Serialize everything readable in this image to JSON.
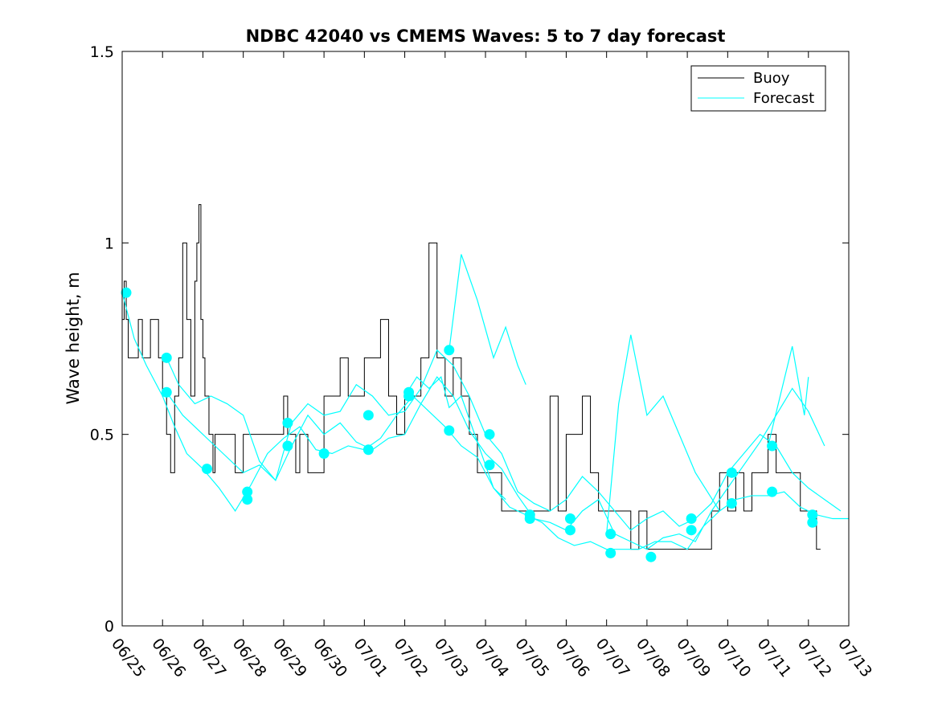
{
  "chart_data": {
    "type": "line",
    "title": "NDBC 42040 vs CMEMS Waves: 5 to 7 day forecast",
    "xlabel": "",
    "ylabel": "Wave height, m",
    "xlim": [
      "06/25",
      "07/13"
    ],
    "ylim": [
      0,
      1.5
    ],
    "yticks": [
      0,
      0.5,
      1,
      1.5
    ],
    "ytick_labels": [
      "0",
      "0.5",
      "1",
      "1.5"
    ],
    "xtick_labels": [
      "06/25",
      "06/26",
      "06/27",
      "06/28",
      "06/29",
      "06/30",
      "07/01",
      "07/02",
      "07/03",
      "07/04",
      "07/05",
      "07/06",
      "07/07",
      "07/08",
      "07/09",
      "07/10",
      "07/11",
      "07/12",
      "07/13"
    ],
    "grid": false,
    "legend": {
      "position": "top-right",
      "entries": [
        "Buoy",
        "Forecast"
      ]
    },
    "colors": {
      "buoy": "#000000",
      "forecast": "#00ffff",
      "markers": "#00ffff"
    },
    "series": [
      {
        "name": "Buoy",
        "x_days": [
          0,
          0.05,
          0.1,
          0.15,
          0.2,
          0.3,
          0.4,
          0.5,
          0.6,
          0.7,
          0.8,
          0.9,
          1.0,
          1.1,
          1.2,
          1.3,
          1.4,
          1.5,
          1.6,
          1.7,
          1.8,
          1.85,
          1.9,
          1.95,
          2.0,
          2.05,
          2.1,
          2.15,
          2.2,
          2.25,
          2.3,
          2.4,
          2.5,
          2.6,
          2.7,
          2.8,
          2.9,
          3.0,
          3.2,
          3.4,
          3.6,
          3.8,
          4.0,
          4.1,
          4.2,
          4.3,
          4.4,
          4.5,
          4.6,
          4.8,
          5.0,
          5.2,
          5.4,
          5.6,
          5.8,
          6.0,
          6.2,
          6.4,
          6.6,
          6.8,
          7.0,
          7.2,
          7.4,
          7.6,
          7.8,
          8.0,
          8.2,
          8.4,
          8.6,
          8.8,
          9.0,
          9.2,
          9.4,
          9.6,
          9.8,
          10.0,
          10.2,
          10.4,
          10.6,
          10.8,
          11.0,
          11.2,
          11.4,
          11.6,
          11.8,
          12.0,
          12.2,
          12.4,
          12.6,
          12.8,
          13.0,
          13.2,
          13.4,
          13.6,
          13.8,
          14.0,
          14.2,
          14.4,
          14.6,
          14.8,
          15.0,
          15.2,
          15.4,
          15.6,
          15.8,
          16.0,
          16.2,
          16.4,
          16.6,
          16.8,
          17.0,
          17.2,
          17.3
        ],
        "values": [
          0.8,
          0.9,
          0.8,
          0.7,
          0.7,
          0.7,
          0.8,
          0.7,
          0.7,
          0.8,
          0.8,
          0.7,
          0.6,
          0.5,
          0.4,
          0.6,
          0.7,
          1.0,
          0.8,
          0.6,
          0.9,
          1.0,
          1.1,
          0.8,
          0.7,
          0.6,
          0.6,
          0.5,
          0.5,
          0.4,
          0.5,
          0.5,
          0.5,
          0.5,
          0.5,
          0.4,
          0.4,
          0.5,
          0.5,
          0.5,
          0.5,
          0.5,
          0.6,
          0.5,
          0.5,
          0.4,
          0.5,
          0.5,
          0.4,
          0.4,
          0.6,
          0.6,
          0.7,
          0.6,
          0.6,
          0.7,
          0.7,
          0.8,
          0.6,
          0.5,
          0.6,
          0.6,
          0.7,
          1.0,
          0.7,
          0.6,
          0.7,
          0.6,
          0.5,
          0.4,
          0.4,
          0.4,
          0.3,
          0.3,
          0.3,
          0.3,
          0.3,
          0.3,
          0.6,
          0.3,
          0.5,
          0.5,
          0.6,
          0.4,
          0.3,
          0.3,
          0.3,
          0.3,
          0.2,
          0.3,
          0.2,
          0.2,
          0.2,
          0.2,
          0.2,
          0.2,
          0.2,
          0.2,
          0.3,
          0.4,
          0.3,
          0.4,
          0.3,
          0.4,
          0.4,
          0.5,
          0.4,
          0.4,
          0.4,
          0.3,
          0.3,
          0.2,
          0.2
        ]
      },
      {
        "name": "Forecast",
        "segments": [
          {
            "x_days": [
              0,
              0.3,
              0.6,
              1.0,
              1.3,
              1.6,
              2.0,
              2.4,
              2.8,
              3.2,
              3.6,
              4.0,
              4.4,
              4.8,
              5.2,
              5.6,
              6.0,
              6.4,
              6.8,
              7.2,
              7.6,
              8.0,
              8.4,
              8.8,
              9.2,
              9.6,
              10.0,
              10.4,
              10.8,
              11.2,
              11.6,
              12.0,
              12.4,
              12.8,
              13.2,
              13.6,
              14.0,
              14.4,
              14.8,
              15.2,
              15.6,
              16.0,
              16.4,
              16.8,
              17.2,
              17.6,
              18.0
            ],
            "values": [
              0.87,
              0.75,
              0.68,
              0.6,
              0.52,
              0.45,
              0.41,
              0.36,
              0.3,
              0.37,
              0.45,
              0.49,
              0.52,
              0.46,
              0.45,
              0.47,
              0.46,
              0.49,
              0.55,
              0.6,
              0.56,
              0.52,
              0.47,
              0.44,
              0.36,
              0.31,
              0.29,
              0.27,
              0.23,
              0.21,
              0.22,
              0.2,
              0.2,
              0.2,
              0.22,
              0.22,
              0.2,
              0.26,
              0.3,
              0.33,
              0.34,
              0.34,
              0.35,
              0.31,
              0.29,
              0.28,
              0.28
            ]
          },
          {
            "x_days": [
              1.1,
              1.4,
              1.8,
              2.2,
              2.6,
              3.0,
              3.4,
              3.8,
              4.2,
              4.6,
              5.0,
              5.4,
              5.8,
              6.2,
              6.6,
              7.0,
              7.4,
              7.8,
              8.2,
              8.6,
              9.0,
              9.4,
              9.8,
              10.2,
              10.6,
              11.0,
              11.4,
              11.8,
              12.2,
              12.6,
              13.0,
              13.4,
              13.8,
              14.2,
              14.6,
              15.0,
              15.4,
              15.8,
              16.2,
              16.6,
              17.0,
              17.4,
              17.8
            ],
            "values": [
              0.7,
              0.63,
              0.58,
              0.6,
              0.58,
              0.55,
              0.43,
              0.38,
              0.53,
              0.58,
              0.55,
              0.56,
              0.63,
              0.6,
              0.55,
              0.56,
              0.62,
              0.72,
              0.68,
              0.6,
              0.5,
              0.45,
              0.35,
              0.32,
              0.3,
              0.33,
              0.39,
              0.35,
              0.3,
              0.25,
              0.28,
              0.3,
              0.26,
              0.28,
              0.32,
              0.4,
              0.45,
              0.5,
              0.47,
              0.4,
              0.36,
              0.33,
              0.3
            ]
          },
          {
            "x_days": [
              1.1,
              1.5,
              2.0,
              2.5,
              3.0,
              3.4,
              3.8,
              4.2,
              4.6,
              5.0,
              5.4,
              5.8,
              6.2,
              6.6,
              7.0,
              7.4,
              7.8,
              8.2,
              8.6,
              9.0,
              9.4,
              9.8,
              10.2,
              10.6,
              11.0,
              11.4,
              11.8,
              12.2,
              12.6,
              13.0,
              13.4,
              13.8,
              14.2,
              14.6,
              15.0,
              15.4,
              15.8,
              16.2,
              16.6,
              17.0,
              17.4
            ],
            "values": [
              0.61,
              0.55,
              0.5,
              0.45,
              0.4,
              0.42,
              0.38,
              0.47,
              0.55,
              0.5,
              0.53,
              0.48,
              0.46,
              0.49,
              0.5,
              0.58,
              0.65,
              0.6,
              0.51,
              0.45,
              0.41,
              0.34,
              0.28,
              0.27,
              0.25,
              0.3,
              0.33,
              0.24,
              0.22,
              0.2,
              0.23,
              0.24,
              0.22,
              0.3,
              0.36,
              0.42,
              0.48,
              0.55,
              0.62,
              0.56,
              0.47
            ]
          },
          {
            "x_days": [
              8.1,
              8.4,
              8.8,
              9.2,
              9.5,
              9.8,
              10.0
            ],
            "values": [
              0.72,
              0.97,
              0.85,
              0.7,
              0.78,
              0.68,
              0.63
            ]
          },
          {
            "x_days": [
              12.0,
              12.3,
              12.6,
              13.0,
              13.4,
              13.8,
              14.2,
              14.5,
              14.8
            ],
            "values": [
              0.24,
              0.58,
              0.76,
              0.55,
              0.6,
              0.5,
              0.4,
              0.35,
              0.3
            ]
          },
          {
            "x_days": [
              16.0,
              16.3,
              16.6,
              16.9,
              17.0
            ],
            "values": [
              0.47,
              0.6,
              0.73,
              0.55,
              0.65
            ]
          },
          {
            "x_days": [
              7.0,
              7.3,
              7.6,
              7.9,
              8.1,
              8.4,
              8.8,
              9.2,
              9.5
            ],
            "values": [
              0.6,
              0.65,
              0.62,
              0.65,
              0.57,
              0.6,
              0.48,
              0.36,
              0.33
            ]
          }
        ]
      },
      {
        "name": "Forecast start markers",
        "x_days": [
          0.1,
          1.1,
          1.1,
          2.1,
          3.1,
          3.1,
          4.1,
          4.1,
          5.0,
          6.1,
          6.1,
          7.1,
          7.1,
          8.1,
          8.1,
          9.1,
          9.1,
          10.1,
          10.1,
          11.1,
          11.1,
          12.1,
          12.1,
          13.1,
          14.1,
          14.1,
          15.1,
          15.1,
          16.1,
          16.1,
          17.1,
          17.1
        ],
        "values": [
          0.87,
          0.7,
          0.61,
          0.41,
          0.35,
          0.33,
          0.53,
          0.47,
          0.45,
          0.55,
          0.46,
          0.61,
          0.6,
          0.72,
          0.51,
          0.5,
          0.42,
          0.29,
          0.28,
          0.28,
          0.25,
          0.24,
          0.19,
          0.18,
          0.28,
          0.25,
          0.4,
          0.32,
          0.47,
          0.35,
          0.29,
          0.27
        ]
      }
    ]
  }
}
